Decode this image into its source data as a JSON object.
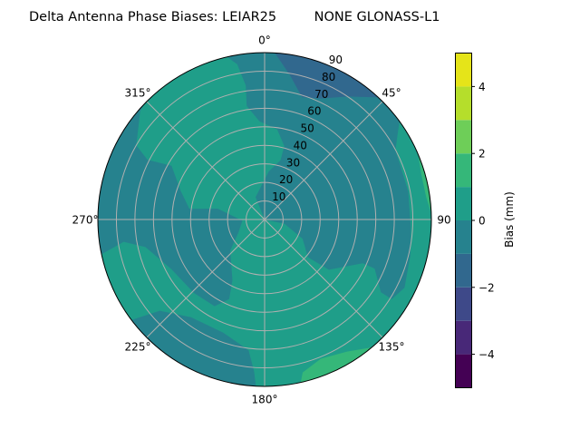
{
  "chart_data": {
    "type": "polar-contour",
    "title": "Delta Antenna Phase Biases: LEIAR25         NONE GLONASS-L1",
    "theta_direction": "clockwise",
    "theta_zero": "top",
    "theta_ticks": [
      "0°",
      "45°",
      "90",
      "135°",
      "180°",
      "225°",
      "270°",
      "315°"
    ],
    "theta_tick_values": [
      0,
      45,
      90,
      135,
      180,
      225,
      270,
      315
    ],
    "r_ticks": [
      "10",
      "20",
      "30",
      "40",
      "50",
      "60",
      "70",
      "80",
      "90"
    ],
    "r_tick_values": [
      10,
      20,
      30,
      40,
      50,
      60,
      70,
      80,
      90
    ],
    "rlim": [
      0,
      90
    ],
    "grid": true,
    "colormap": "viridis",
    "levels": [
      -5,
      -4,
      -3,
      -2,
      -1,
      0,
      1,
      2,
      3,
      4,
      5
    ],
    "level_colors": [
      "#440154",
      "#482878",
      "#3e4989",
      "#31688e",
      "#26828e",
      "#1f9e89",
      "#35b779",
      "#6ece58",
      "#b5de2b",
      "#e5e419"
    ],
    "background_band": [
      -1,
      0
    ],
    "regions": [
      {
        "band": [
          0,
          1
        ],
        "points": [
          [
            347,
            90
          ],
          [
            314,
            90
          ],
          [
            311,
            89
          ],
          [
            300,
            80
          ],
          [
            297,
            71
          ],
          [
            300,
            58
          ],
          [
            289,
            48
          ],
          [
            278,
            41
          ],
          [
            283,
            26
          ],
          [
            267,
            12
          ],
          [
            243,
            16
          ],
          [
            228,
            25
          ],
          [
            208,
            37
          ],
          [
            204,
            47
          ],
          [
            210,
            54
          ],
          [
            224,
            55
          ],
          [
            242,
            57
          ],
          [
            257,
            66
          ],
          [
            261,
            77
          ],
          [
            258,
            90
          ],
          [
            233,
            90
          ],
          [
            229,
            75
          ],
          [
            217,
            66
          ],
          [
            200,
            65
          ],
          [
            187,
            71
          ],
          [
            184,
            82
          ],
          [
            183,
            90
          ],
          [
            54,
            90
          ],
          [
            56,
            87
          ],
          [
            62,
            80
          ],
          [
            79,
            79
          ],
          [
            93,
            79
          ],
          [
            104,
            81
          ],
          [
            116,
            84
          ],
          [
            122,
            81
          ],
          [
            122,
            74
          ],
          [
            114,
            65
          ],
          [
            114,
            58
          ],
          [
            128,
            44
          ],
          [
            131,
            31
          ],
          [
            117,
            23
          ],
          [
            102,
            11
          ],
          [
            0,
            0
          ],
          [
            338,
            13
          ],
          [
            5,
            26
          ],
          [
            15,
            33
          ],
          [
            15,
            41
          ],
          [
            8,
            49
          ],
          [
            357,
            53
          ],
          [
            351,
            62
          ],
          [
            352,
            73
          ],
          [
            350,
            85
          ]
        ]
      },
      {
        "band": [
          -2,
          -1
        ],
        "points": [
          [
            3.5,
            90
          ],
          [
            10,
            79
          ],
          [
            17,
            69
          ],
          [
            25,
            72
          ],
          [
            34,
            80
          ],
          [
            43,
            90
          ]
        ]
      },
      {
        "band": [
          1,
          2
        ],
        "points": [
          [
            67,
            90
          ],
          [
            74,
            88
          ],
          [
            82,
            88
          ],
          [
            88,
            90
          ]
        ]
      },
      {
        "band": [
          1,
          2
        ],
        "points": [
          [
            167.5,
            90
          ],
          [
            166,
            85
          ],
          [
            158,
            81
          ],
          [
            148,
            84
          ],
          [
            140,
            90
          ]
        ]
      }
    ],
    "colorbar": {
      "label": "Bias (mm)",
      "range": [
        -5,
        5
      ],
      "ticks": [
        "−4",
        "−2",
        "0",
        "2",
        "4"
      ],
      "tick_values": [
        -4,
        -2,
        0,
        2,
        4
      ]
    }
  }
}
